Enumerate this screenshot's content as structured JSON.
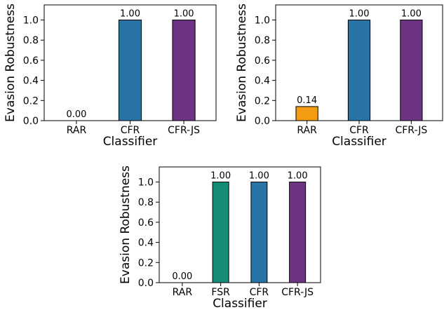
{
  "chart_data": [
    {
      "type": "bar",
      "categories": [
        "RAR",
        "CFR",
        "CFR-JS"
      ],
      "values": [
        0.0,
        1.0,
        1.0
      ],
      "data_labels": [
        "0.00",
        "1.00",
        "1.00"
      ],
      "colors": [
        "#f39c12",
        "#2874a6",
        "#6c3483"
      ],
      "xlabel": "Classifier",
      "ylabel": "Evasion Robustness",
      "ylim": [
        0,
        1.15
      ],
      "yticks": [
        0.0,
        0.2,
        0.4,
        0.6,
        0.8,
        1.0
      ],
      "ytick_labels": [
        "0.0",
        "0.2",
        "0.4",
        "0.6",
        "0.8",
        "1.0"
      ],
      "grid": false
    },
    {
      "type": "bar",
      "categories": [
        "RAR",
        "CFR",
        "CFR-JS"
      ],
      "values": [
        0.14,
        1.0,
        1.0
      ],
      "data_labels": [
        "0.14",
        "1.00",
        "1.00"
      ],
      "colors": [
        "#f39c12",
        "#2874a6",
        "#6c3483"
      ],
      "xlabel": "Classifier",
      "ylabel": "Evasion Robustness",
      "ylim": [
        0,
        1.15
      ],
      "yticks": [
        0.0,
        0.2,
        0.4,
        0.6,
        0.8,
        1.0
      ],
      "ytick_labels": [
        "0.0",
        "0.2",
        "0.4",
        "0.6",
        "0.8",
        "1.0"
      ],
      "grid": false
    },
    {
      "type": "bar",
      "categories": [
        "RAR",
        "FSR",
        "CFR",
        "CFR-JS"
      ],
      "values": [
        0.0,
        1.0,
        1.0,
        1.0
      ],
      "data_labels": [
        "0.00",
        "1.00",
        "1.00",
        "1.00"
      ],
      "colors": [
        "#f39c12",
        "#138d75",
        "#2874a6",
        "#6c3483"
      ],
      "xlabel": "Classifier",
      "ylabel": "Evasion Robustness",
      "ylim": [
        0,
        1.15
      ],
      "yticks": [
        0.0,
        0.2,
        0.4,
        0.6,
        0.8,
        1.0
      ],
      "ytick_labels": [
        "0.0",
        "0.2",
        "0.4",
        "0.6",
        "0.8",
        "1.0"
      ],
      "grid": false
    }
  ]
}
